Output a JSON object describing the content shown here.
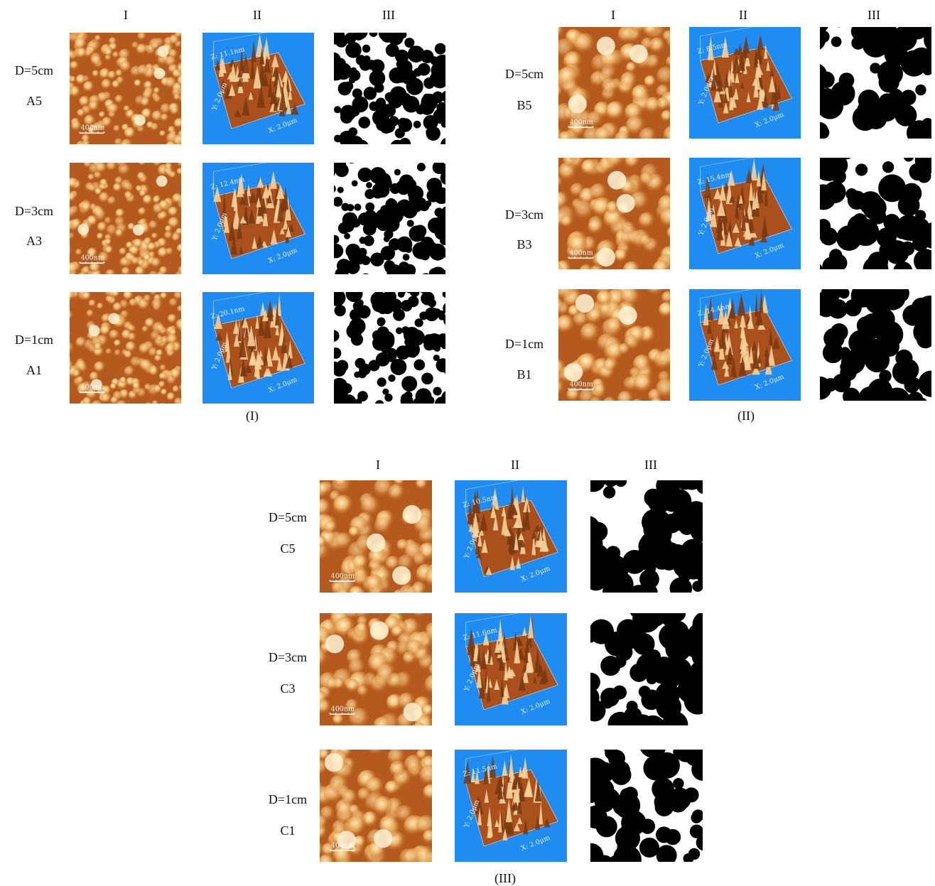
{
  "col_headers": [
    "I",
    "II",
    "III"
  ],
  "captions": [
    "(I)",
    "(II)",
    "(III)"
  ],
  "panels": [
    {
      "rows": [
        {
          "distance": "D=5cm",
          "sample": "A5",
          "scale": "400nm",
          "z": "Z: 11.1nm"
        },
        {
          "distance": "D=3cm",
          "sample": "A3",
          "scale": "400nm",
          "z": "Z: 12.4nm"
        },
        {
          "distance": "D=1cm",
          "sample": "A1",
          "scale": "400nm",
          "z": "Z: 20.1nm"
        }
      ]
    },
    {
      "rows": [
        {
          "distance": "D=5cm",
          "sample": "B5",
          "scale": "400nm",
          "z": "Z: 8.5nm"
        },
        {
          "distance": "D=3cm",
          "sample": "B3",
          "scale": "400nm",
          "z": "Z: 15.4nm"
        },
        {
          "distance": "D=1cm",
          "sample": "B1",
          "scale": "400nm",
          "z": "Z: 14.4nm"
        }
      ]
    },
    {
      "rows": [
        {
          "distance": "D=5cm",
          "sample": "C5",
          "scale": "400nm",
          "z": "Z: 10.5nm"
        },
        {
          "distance": "D=3cm",
          "sample": "C3",
          "scale": "400nm",
          "z": "Z: 11.6nm"
        },
        {
          "distance": "D=1cm",
          "sample": "C1",
          "scale": "400nm",
          "z": "Z: 11.5nm"
        }
      ]
    }
  ],
  "axis": {
    "x": "X: 2.0μm",
    "y": "Y: 2.0μm"
  },
  "colors": {
    "afm_bg": "#b45a1e",
    "grain": "#f2b968",
    "surface_bg": "#1e8cf0",
    "binary_fg": "#000000"
  }
}
